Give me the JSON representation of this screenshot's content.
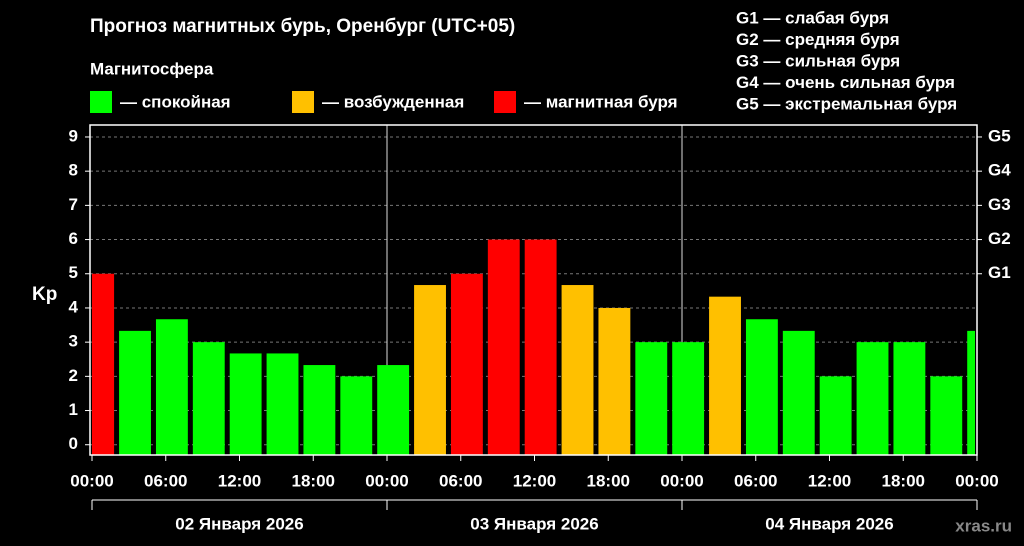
{
  "chart_data": {
    "type": "bar",
    "title": "Прогноз магнитных бурь, Оренбург (UTC+05)",
    "legend_title": "Магнитосфера",
    "legend": [
      {
        "name": "— спокойная",
        "color": "#00ff00"
      },
      {
        "name": "— возбужденная",
        "color": "#ffc000"
      },
      {
        "name": "— магнитная буря",
        "color": "#ff0000"
      }
    ],
    "storm_levels": [
      "G1 — слабая буря",
      "G2 — средняя буря",
      "G3 — сильная буря",
      "G4 — очень сильная буря",
      "G5 — экстремальная буря"
    ],
    "y_label": "Kp",
    "x": [
      -1,
      2,
      5,
      8,
      11,
      14,
      17,
      20,
      23,
      26,
      29,
      32,
      35,
      38,
      41,
      44,
      47,
      50,
      53,
      56,
      59,
      62,
      65,
      68,
      71
    ],
    "values": [
      5,
      3.33,
      3.67,
      3,
      2.67,
      2.67,
      2.33,
      2,
      2.33,
      4.67,
      5,
      6,
      6,
      4.67,
      4,
      3,
      3,
      4.33,
      3.67,
      3.33,
      2,
      3,
      3,
      2,
      3.33
    ],
    "colors": [
      "#ff0000",
      "#00ff00",
      "#00ff00",
      "#00ff00",
      "#00ff00",
      "#00ff00",
      "#00ff00",
      "#00ff00",
      "#00ff00",
      "#ffc000",
      "#ff0000",
      "#ff0000",
      "#ff0000",
      "#ffc000",
      "#ffc000",
      "#00ff00",
      "#00ff00",
      "#ffc000",
      "#00ff00",
      "#00ff00",
      "#00ff00",
      "#00ff00",
      "#00ff00",
      "#00ff00",
      "#00ff00"
    ],
    "xlim": [
      0,
      72
    ],
    "xticks": [
      {
        "value": 0,
        "label": "00:00"
      },
      {
        "value": 6,
        "label": "06:00"
      },
      {
        "value": 12,
        "label": "12:00"
      },
      {
        "value": 18,
        "label": "18:00"
      },
      {
        "value": 24,
        "label": "00:00"
      },
      {
        "value": 30,
        "label": "06:00"
      },
      {
        "value": 36,
        "label": "12:00"
      },
      {
        "value": 42,
        "label": "18:00"
      },
      {
        "value": 48,
        "label": "00:00"
      },
      {
        "value": 54,
        "label": "06:00"
      },
      {
        "value": 60,
        "label": "12:00"
      },
      {
        "value": 66,
        "label": "18:00"
      },
      {
        "value": 72,
        "label": "00:00"
      }
    ],
    "days": [
      "02 Января 2026",
      "03 Января 2026",
      "04 Января 2026"
    ],
    "ylim": [
      -0.3,
      9.35
    ],
    "yticks": [
      0,
      1,
      2,
      3,
      4,
      5,
      6,
      7,
      8,
      9
    ],
    "y2lim": [
      -0.3,
      9.35
    ],
    "y2ticks": [
      {
        "value": 5,
        "label": "G1"
      },
      {
        "value": 6,
        "label": "G2"
      },
      {
        "value": 7,
        "label": "G3"
      },
      {
        "value": 8,
        "label": "G4"
      },
      {
        "value": 9,
        "label": "G5"
      }
    ],
    "grid": true,
    "watermark": "xras.ru"
  }
}
